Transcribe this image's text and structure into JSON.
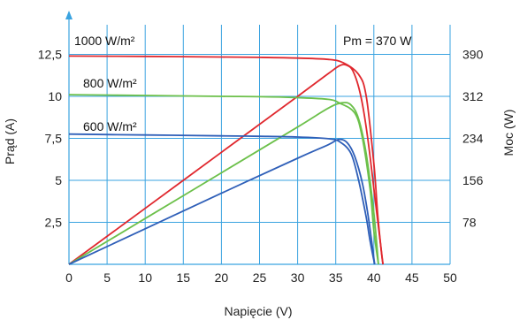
{
  "chart_data": {
    "type": "line",
    "title": "",
    "xlabel": "Napięcie (V)",
    "ylabel": "Prąd (A)",
    "y2label": "Moc (W)",
    "xlim": [
      0,
      50
    ],
    "ylim": [
      0,
      15
    ],
    "y2lim": [
      0,
      468
    ],
    "xticks": [
      "0",
      "5",
      "10",
      "15",
      "20",
      "25",
      "30",
      "35",
      "40",
      "45",
      "50"
    ],
    "yticks": [
      "2,5",
      "5",
      "7,5",
      "10",
      "12,5"
    ],
    "y2ticks": [
      "78",
      "156",
      "234",
      "312",
      "390"
    ],
    "grid": true,
    "colors": {
      "s1000": "#e0282e",
      "s800": "#6cc04a",
      "s600": "#2f5fb8",
      "grid": "#3aa3e0"
    },
    "annotations": [
      "1000 W/m²",
      "800 W/m²",
      "600 W/m²",
      "Pm = 370 W"
    ],
    "series": [
      {
        "name": "1000 W/m²",
        "color": "#e0282e",
        "current": {
          "x": [
            0,
            10,
            20,
            25,
            30,
            34,
            36,
            38,
            39,
            40,
            40.5,
            41,
            41.2
          ],
          "y": [
            12.4,
            12.38,
            12.34,
            12.32,
            12.28,
            12.2,
            12.0,
            11.3,
            10.0,
            6.0,
            3.0,
            0.7,
            0
          ]
        },
        "power": {
          "x": [
            0,
            10,
            20,
            30,
            34,
            35.5,
            36.4,
            37.3,
            38.3,
            39.2,
            40.2,
            41.2
          ],
          "y": [
            0,
            104,
            208,
            312,
            354,
            369,
            370,
            358,
            312,
            234,
            117,
            0
          ]
        }
      },
      {
        "name": "800 W/m²",
        "color": "#6cc04a",
        "current": {
          "x": [
            0,
            10,
            20,
            25,
            30,
            34,
            35.5,
            37.5,
            38.5,
            39.5,
            40,
            40.6
          ],
          "y": [
            10.1,
            10.05,
            10.0,
            9.98,
            9.92,
            9.82,
            9.6,
            9.0,
            7.5,
            4.5,
            2.0,
            0
          ]
        },
        "power": {
          "x": [
            0,
            10,
            20,
            30,
            34,
            35.8,
            37,
            38,
            39,
            40,
            40.6
          ],
          "y": [
            0,
            85,
            170,
            255,
            290,
            300,
            296,
            270,
            205,
            95,
            0
          ]
        }
      },
      {
        "name": "600 W/m²",
        "color": "#2f5fb8",
        "current": {
          "x": [
            0,
            10,
            20,
            25,
            30,
            34,
            35.5,
            37,
            38,
            39,
            39.5,
            40.1
          ],
          "y": [
            7.75,
            7.7,
            7.65,
            7.62,
            7.58,
            7.48,
            7.3,
            6.6,
            5.0,
            2.8,
            1.4,
            0
          ]
        },
        "power": {
          "x": [
            0,
            10,
            20,
            30,
            34,
            35.4,
            36.5,
            37.5,
            38.5,
            39.3,
            40.1
          ],
          "y": [
            0,
            66,
            132,
            197,
            222,
            232,
            226,
            200,
            150,
            85,
            0
          ]
        }
      }
    ]
  }
}
